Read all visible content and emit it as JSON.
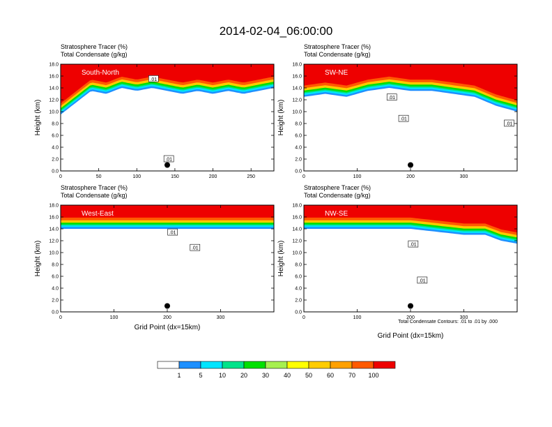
{
  "figure": {
    "title": "2014-02-04_06:00:00",
    "subtitle_line1": "Stratosphere Tracer   (%)",
    "subtitle_line2": "Total Condensate   (g/kg)",
    "ylabel": "Height (km)",
    "xlabel": "Grid Point (dx=15km)",
    "contour_note": "Total Condensate Contours: .01 to .01 by .000"
  },
  "colorbar": {
    "levels": [
      "1",
      "5",
      "10",
      "20",
      "30",
      "40",
      "50",
      "60",
      "70",
      "100"
    ],
    "colors": [
      "#ffffff",
      "#1e90ff",
      "#00e5ff",
      "#00e38a",
      "#00e000",
      "#a6f050",
      "#ffff00",
      "#ffcc00",
      "#ffa000",
      "#ff5a00",
      "#ee0000"
    ]
  },
  "chart_data": [
    {
      "type": "heatmap",
      "panel": "South-North",
      "title": "Stratosphere Tracer   (%)",
      "subtitle": "Total Condensate   (g/kg)",
      "ylabel": "Height (km)",
      "xlabel": "",
      "xlim": [
        0,
        280
      ],
      "ylim": [
        0,
        18
      ],
      "xticks": [
        "0",
        "50",
        "100",
        "150",
        "200",
        "250"
      ],
      "yticks": [
        "0.0",
        "2.0",
        "4.0",
        "6.0",
        "8.0",
        "10.0",
        "12.0",
        "14.0",
        "16.0",
        "18.0"
      ],
      "tropopause_profile": {
        "x": [
          0,
          20,
          40,
          60,
          80,
          100,
          120,
          140,
          160,
          180,
          200,
          220,
          240,
          260,
          280
        ],
        "y": [
          10.5,
          12.5,
          14.5,
          14.0,
          15.0,
          14.5,
          15.0,
          14.5,
          14.0,
          14.5,
          14.0,
          14.5,
          14.0,
          14.5,
          15.0
        ]
      },
      "contour_labels": [
        {
          "x": 122,
          "y": 15.5,
          "text": ".01"
        },
        {
          "x": 142,
          "y": 2.0,
          "text": ".01"
        }
      ],
      "marker": {
        "x": 140,
        "y": 1.0
      }
    },
    {
      "type": "heatmap",
      "panel": "SW-NE",
      "title": "Stratosphere Tracer   (%)",
      "subtitle": "Total Condensate   (g/kg)",
      "ylabel": "Height (km)",
      "xlabel": "",
      "xlim": [
        0,
        400
      ],
      "ylim": [
        0,
        18
      ],
      "xticks": [
        "0",
        "100",
        "200",
        "300"
      ],
      "yticks": [
        "0.0",
        "2.0",
        "4.0",
        "6.0",
        "8.0",
        "10.0",
        "12.0",
        "14.0",
        "16.0",
        "18.0"
      ],
      "tropopause_profile": {
        "x": [
          0,
          40,
          80,
          120,
          160,
          200,
          240,
          280,
          320,
          360,
          400
        ],
        "y": [
          13.5,
          14.0,
          13.5,
          14.5,
          15.0,
          14.5,
          14.5,
          14.0,
          13.5,
          12.0,
          11.0
        ]
      },
      "contour_labels": [
        {
          "x": 165,
          "y": 12.4,
          "text": ".01"
        },
        {
          "x": 187,
          "y": 8.8,
          "text": ".01"
        },
        {
          "x": 385,
          "y": 8.0,
          "text": ".01"
        }
      ],
      "marker": {
        "x": 200,
        "y": 1.0
      }
    },
    {
      "type": "heatmap",
      "panel": "West-East",
      "title": "Stratosphere Tracer   (%)",
      "subtitle": "Total Condensate   (g/kg)",
      "ylabel": "Height (km)",
      "xlabel": "Grid Point (dx=15km)",
      "xlim": [
        0,
        400
      ],
      "ylim": [
        0,
        18
      ],
      "xticks": [
        "0",
        "100",
        "200",
        "300"
      ],
      "yticks": [
        "0.0",
        "2.0",
        "4.0",
        "6.0",
        "8.0",
        "10.0",
        "12.0",
        "14.0",
        "16.0",
        "18.0"
      ],
      "tropopause_profile": {
        "x": [
          0,
          50,
          100,
          150,
          200,
          250,
          300,
          350,
          400
        ],
        "y": [
          15.0,
          15.0,
          15.0,
          15.0,
          15.0,
          15.0,
          15.0,
          15.0,
          15.0
        ]
      },
      "contour_labels": [
        {
          "x": 210,
          "y": 13.4,
          "text": ".01"
        },
        {
          "x": 252,
          "y": 10.8,
          "text": ".01"
        }
      ],
      "marker": {
        "x": 200,
        "y": 1.0
      }
    },
    {
      "type": "heatmap",
      "panel": "NW-SE",
      "title": "Stratosphere Tracer   (%)",
      "subtitle": "Total Condensate   (g/kg)",
      "ylabel": "Height (km)",
      "xlabel": "Grid Point (dx=15km)",
      "xlim": [
        0,
        400
      ],
      "ylim": [
        0,
        18
      ],
      "xticks": [
        "0",
        "100",
        "200",
        "300"
      ],
      "yticks": [
        "0.0",
        "2.0",
        "4.0",
        "6.0",
        "8.0",
        "10.0",
        "12.0",
        "14.0",
        "16.0",
        "18.0"
      ],
      "tropopause_profile": {
        "x": [
          0,
          50,
          100,
          150,
          200,
          250,
          300,
          340,
          370,
          400
        ],
        "y": [
          15.0,
          15.0,
          15.0,
          15.0,
          15.0,
          14.5,
          14.0,
          14.0,
          13.0,
          12.5
        ]
      },
      "contour_labels": [
        {
          "x": 205,
          "y": 11.4,
          "text": ".01"
        },
        {
          "x": 222,
          "y": 5.3,
          "text": ".01"
        }
      ],
      "marker": {
        "x": 200,
        "y": 1.0
      }
    }
  ]
}
